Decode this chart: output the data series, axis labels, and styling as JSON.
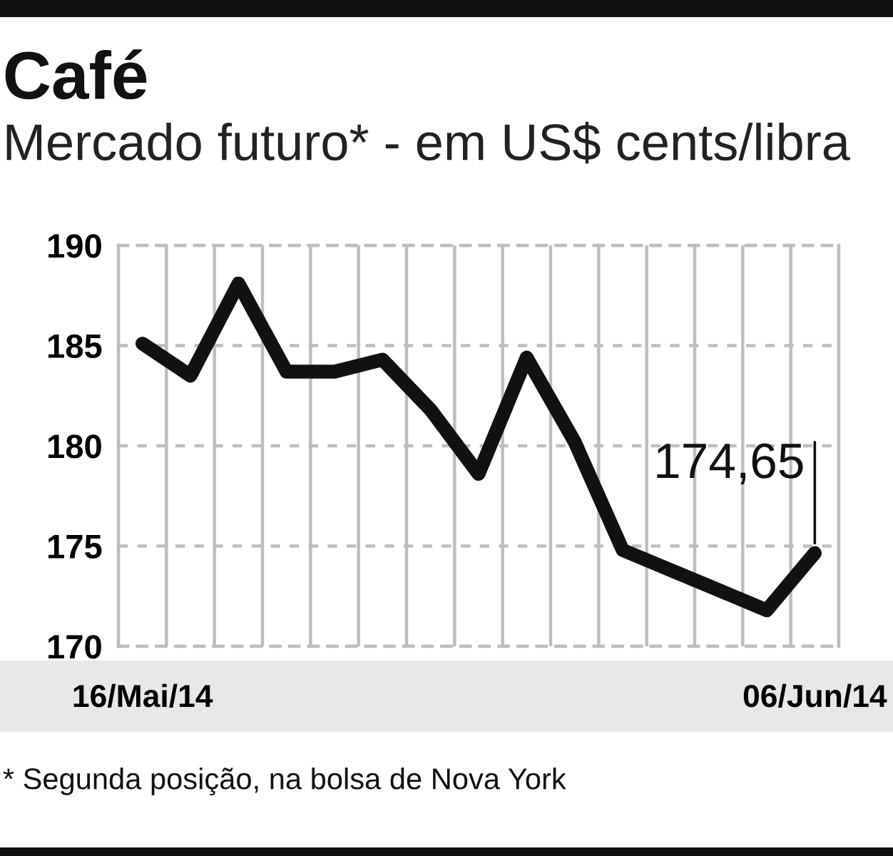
{
  "chart_data": {
    "type": "line",
    "title": "Café",
    "subtitle": "Mercado futuro* - em US$ cents/libra",
    "categories": [
      "16/Mai/14",
      null,
      null,
      null,
      null,
      null,
      null,
      null,
      null,
      null,
      null,
      null,
      null,
      null,
      "06/Jun/14"
    ],
    "values": [
      185.1,
      183.5,
      188.1,
      183.7,
      183.7,
      184.3,
      181.8,
      178.6,
      184.4,
      180.2,
      174.8,
      173.8,
      172.8,
      171.8,
      174.65
    ],
    "color": "#111111",
    "line_style": "solid",
    "ylim": [
      170,
      190
    ],
    "yticks": [
      170,
      175,
      180,
      185,
      190
    ],
    "grid": true,
    "value_labels": [
      null,
      null,
      null,
      null,
      null,
      null,
      null,
      null,
      null,
      null,
      null,
      null,
      null,
      null,
      "174,65"
    ],
    "annotations": [
      "* Segunda posição, na bolsa de Nova York"
    ]
  }
}
